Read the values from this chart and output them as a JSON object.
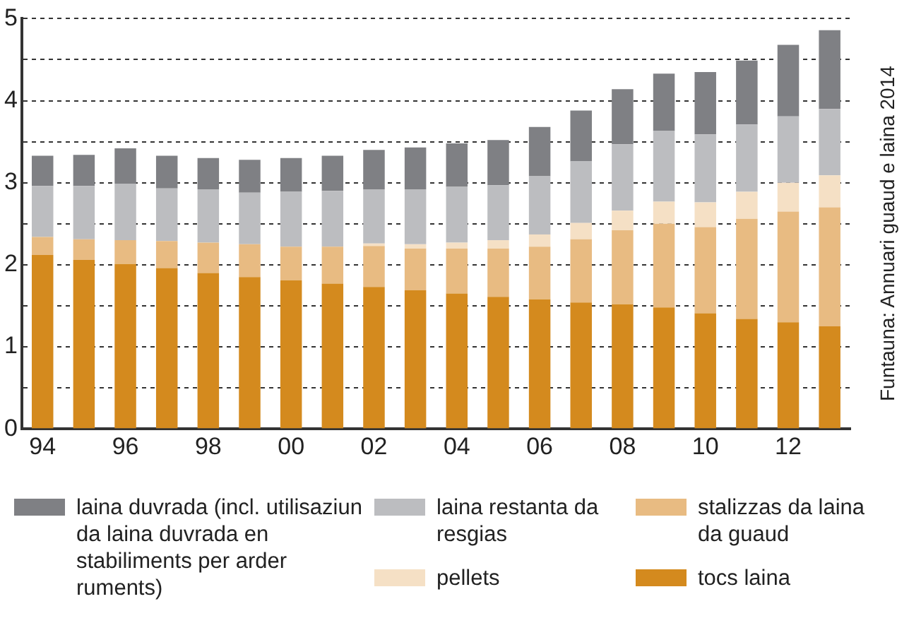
{
  "chart_data": {
    "type": "bar",
    "stacked": true,
    "categories": [
      "94",
      null,
      "96",
      null,
      "98",
      null,
      "00",
      null,
      "02",
      null,
      "04",
      null,
      "06",
      null,
      "08",
      null,
      "10",
      null,
      "12",
      null
    ],
    "series": [
      {
        "name": "tocs laina",
        "color": "#d48a1e",
        "values": [
          2.12,
          2.06,
          2.01,
          1.96,
          1.9,
          1.85,
          1.81,
          1.77,
          1.73,
          1.69,
          1.65,
          1.61,
          1.58,
          1.54,
          1.52,
          1.48,
          1.41,
          1.34,
          1.3,
          1.25
        ]
      },
      {
        "name": "stalizzas da laina da guaud",
        "color": "#e8bb82",
        "values": [
          0.22,
          0.25,
          0.29,
          0.33,
          0.37,
          0.4,
          0.41,
          0.45,
          0.5,
          0.51,
          0.55,
          0.59,
          0.64,
          0.77,
          0.9,
          1.02,
          1.05,
          1.22,
          1.35,
          1.45
        ]
      },
      {
        "name": "pellets",
        "color": "#f5e0c5",
        "values": [
          0,
          0,
          0,
          0,
          0,
          0,
          null,
          null,
          0.03,
          0.05,
          0.07,
          0.1,
          0.15,
          0.2,
          0.24,
          0.27,
          0.3,
          0.33,
          0.35,
          0.39
        ]
      },
      {
        "name": "laina restanta da resgias",
        "color": "#bcbdc0",
        "values": [
          0.62,
          0.65,
          0.69,
          0.64,
          0.65,
          0.63,
          0.67,
          0.68,
          0.66,
          0.67,
          0.68,
          0.67,
          0.71,
          0.75,
          0.81,
          0.86,
          0.83,
          0.82,
          0.81,
          0.81
        ]
      },
      {
        "name": "laina duvrada (incl. utilisaziun da laina duvrada en stabiliments per arder ruments)",
        "color": "#7f8084",
        "values": [
          0.37,
          0.38,
          0.43,
          0.4,
          0.38,
          0.4,
          0.41,
          0.43,
          0.48,
          0.51,
          0.53,
          0.55,
          0.6,
          0.62,
          0.67,
          0.7,
          0.76,
          0.78,
          0.87,
          0.96
        ]
      }
    ],
    "ylim": [
      0,
      5
    ],
    "yticks": [
      0,
      {
        "value": 0.5,
        "label": null
      },
      1,
      {
        "value": 1.5,
        "label": null
      },
      2,
      {
        "value": 2.5,
        "label": null
      },
      3,
      {
        "value": 3.5,
        "label": null
      },
      4,
      {
        "value": 4.5,
        "label": null
      },
      5
    ],
    "grid": "y",
    "legend": "bottom",
    "annotations": [
      "Funtauna: Annuari guaud e laina 2014"
    ]
  }
}
